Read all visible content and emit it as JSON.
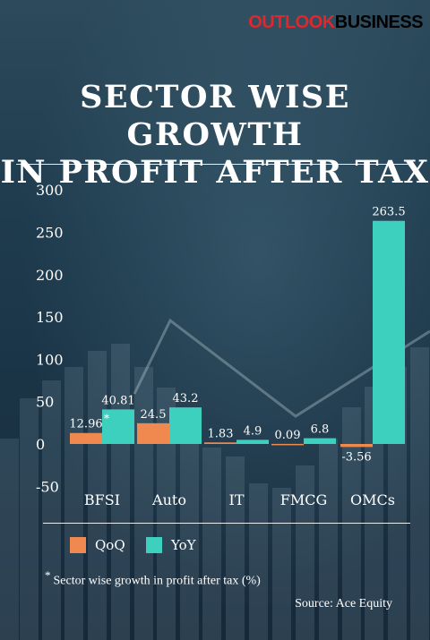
{
  "brand": {
    "part1": "OUTLOOK",
    "part2": "BUSINESS"
  },
  "title_line1": "SECTOR WISE GROWTH",
  "title_line2": "IN PROFIT AFTER TAX",
  "legend": [
    {
      "label": "QoQ",
      "color": "#f0894f"
    },
    {
      "label": "YoY",
      "color": "#3dd0be"
    }
  ],
  "footnote_mark": "*",
  "footnote": "Sector wise growth in profit after tax (%)",
  "source": "Source: Ace Equity",
  "chart_data": {
    "type": "bar",
    "categories": [
      "BFSI",
      "Auto",
      "IT",
      "FMCG",
      "OMCs"
    ],
    "series": [
      {
        "name": "QoQ",
        "values": [
          12.96,
          24.5,
          1.83,
          0.09,
          -3.56
        ],
        "labels": [
          "12.96",
          "24.5",
          "1.83",
          "0.09",
          "-3.56"
        ],
        "color": "#f0894f"
      },
      {
        "name": "YoY",
        "values": [
          40.81,
          43.2,
          4.9,
          6.8,
          263.5
        ],
        "labels": [
          "40.81",
          "43.2",
          "4.9",
          "6.8",
          "263.5"
        ],
        "color": "#3dd0be"
      }
    ],
    "yticks": [
      "300",
      "250",
      "200",
      "150",
      "100",
      "50",
      "0",
      "-50"
    ],
    "ylim": [
      -50,
      300
    ],
    "annotation": {
      "text": "*",
      "category": "BFSI"
    }
  }
}
